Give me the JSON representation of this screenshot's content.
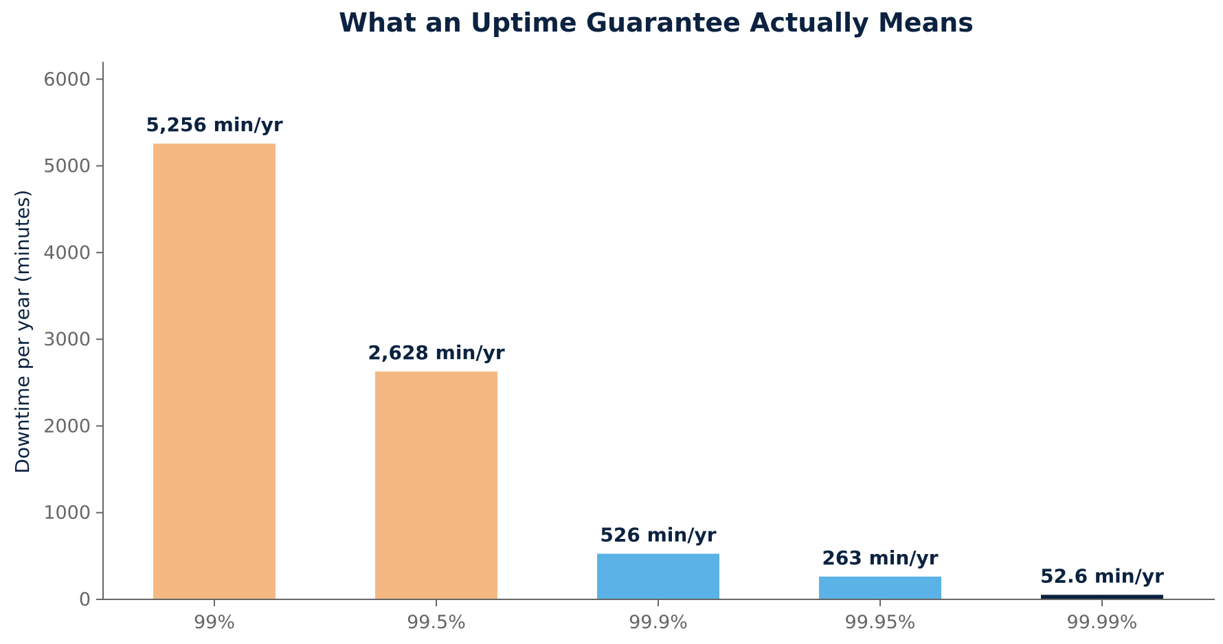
{
  "chart_data": {
    "type": "bar",
    "title": "What an Uptime Guarantee Actually Means",
    "xlabel": "",
    "ylabel": "Downtime per year (minutes)",
    "categories": [
      "99%",
      "99.5%",
      "99.9%",
      "99.95%",
      "99.99%"
    ],
    "values": [
      5256,
      2628,
      526,
      263,
      52.6
    ],
    "data_labels": [
      "5,256 min/yr",
      "2,628 min/yr",
      "526 min/yr",
      "263 min/yr",
      "52.6 min/yr"
    ],
    "bar_colors": [
      "#F4B982",
      "#F4B982",
      "#5BB2E6",
      "#5BB2E6",
      "#0B2240"
    ],
    "ylim": [
      0,
      6200
    ],
    "yticks": [
      0,
      1000,
      2000,
      3000,
      4000,
      5000,
      6000
    ],
    "grid": false,
    "legend": "none"
  },
  "colors": {
    "title": "#0B2240",
    "data_label": "#0B2240",
    "tick_label": "#666666",
    "axis_label": "#0B2240",
    "axis_line": "#666666"
  }
}
